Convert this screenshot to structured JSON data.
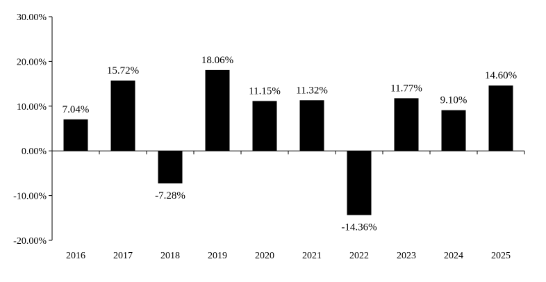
{
  "chart_data": {
    "type": "bar",
    "categories": [
      "2016",
      "2017",
      "2018",
      "2019",
      "2020",
      "2021",
      "2022",
      "2023",
      "2024",
      "2025"
    ],
    "values": [
      7.04,
      15.72,
      -7.28,
      18.06,
      11.15,
      11.32,
      -14.36,
      11.77,
      9.1,
      14.6
    ],
    "data_labels": [
      "7.04%",
      "15.72%",
      "-7.28%",
      "18.06%",
      "11.15%",
      "11.32%",
      "-14.36%",
      "11.77%",
      "9.10%",
      "14.60%"
    ],
    "y_ticks": [
      30,
      20,
      10,
      0,
      -10,
      -20
    ],
    "y_tick_labels": [
      "30.00%",
      "20.00%",
      "10.00%",
      "0.00%",
      "-10.00%",
      "-20.00%"
    ],
    "ylim": [
      -20,
      30
    ],
    "title": "",
    "xlabel": "",
    "ylabel": "",
    "grid": false,
    "bar_color": "#000000"
  }
}
